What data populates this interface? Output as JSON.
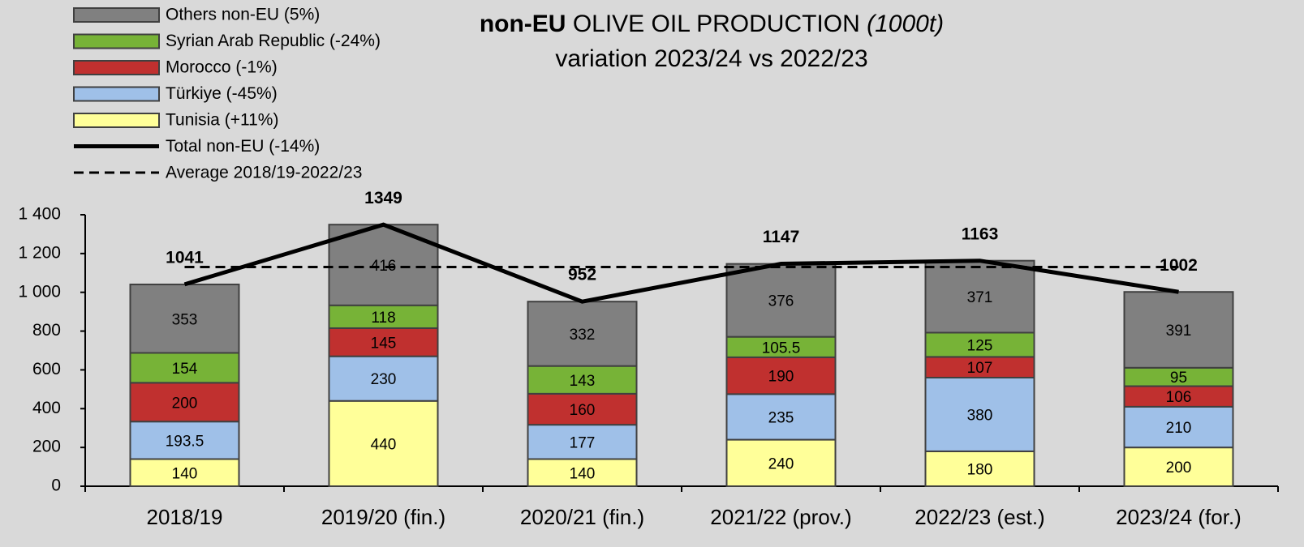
{
  "chart_data": {
    "type": "stacked-bar-line",
    "title": [
      "non-EU",
      "OLIVE OIL PRODUCTION",
      "(1000t)"
    ],
    "subtitle": "variation 2023/24 vs 2022/23",
    "categories": [
      "2018/19",
      "2019/20 (fin.)",
      "2020/21 (fin.)",
      "2021/22 (prov.)",
      "2022/23 (est.)",
      "2023/24 (for.)"
    ],
    "ylim": [
      0,
      1400
    ],
    "yticks": [
      0,
      200,
      400,
      600,
      800,
      {
        "value": 1000,
        "label": "1 000"
      },
      {
        "value": 1200,
        "label": "1 200"
      },
      {
        "value": 1400,
        "label": "1 400"
      }
    ],
    "series": [
      {
        "name": "Others non-EU (5%)",
        "type": "bar",
        "color": "#808080",
        "values": [
          353,
          416,
          332,
          376,
          371,
          391
        ]
      },
      {
        "name": "Syrian Arab Republic (-24%)",
        "type": "bar",
        "color": "#77b337",
        "values": [
          154,
          118,
          143,
          105.5,
          125,
          95
        ]
      },
      {
        "name": "Morocco (-1%)",
        "type": "bar",
        "color": "#c0302f",
        "values": [
          200,
          145,
          160,
          190,
          107,
          106
        ]
      },
      {
        "name": "Türkiye (-45%)",
        "type": "bar",
        "color": "#9fc0e8",
        "values": [
          193.5,
          230,
          177,
          235,
          380,
          210
        ]
      },
      {
        "name": "Tunisia (+11%)",
        "type": "bar",
        "color": "#ffff99",
        "values": [
          140,
          440,
          140,
          240,
          180,
          200
        ]
      },
      {
        "name": "Total non-EU (-14%)",
        "type": "line",
        "color": "#000000",
        "labels": true,
        "values": [
          1041,
          1349,
          952,
          1147,
          1163,
          1002
        ]
      },
      {
        "name": "Average 2018/19-2022/23",
        "type": "line",
        "color": "#000000",
        "dashed": true,
        "values": [
          1130.4,
          1130.4,
          1130.4,
          1130.4,
          1130.4,
          1130.4
        ]
      }
    ]
  }
}
